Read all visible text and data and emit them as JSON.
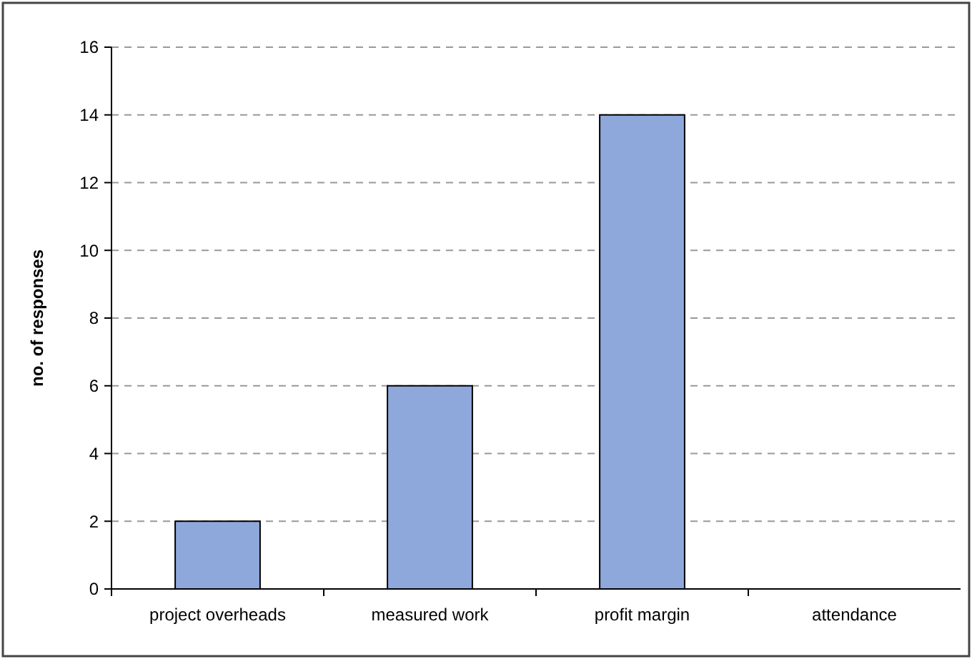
{
  "chart_data": {
    "type": "bar",
    "ylabel": "no. of responses",
    "categories": [
      "project overheads",
      "measured work",
      "profit margin",
      "attendance"
    ],
    "values": [
      2,
      6,
      14,
      0
    ],
    "color": "#8fa8dc",
    "ylim": [
      0,
      16
    ],
    "yticks": [
      0,
      2,
      4,
      6,
      8,
      10,
      12,
      14,
      16
    ],
    "grid": "y"
  }
}
